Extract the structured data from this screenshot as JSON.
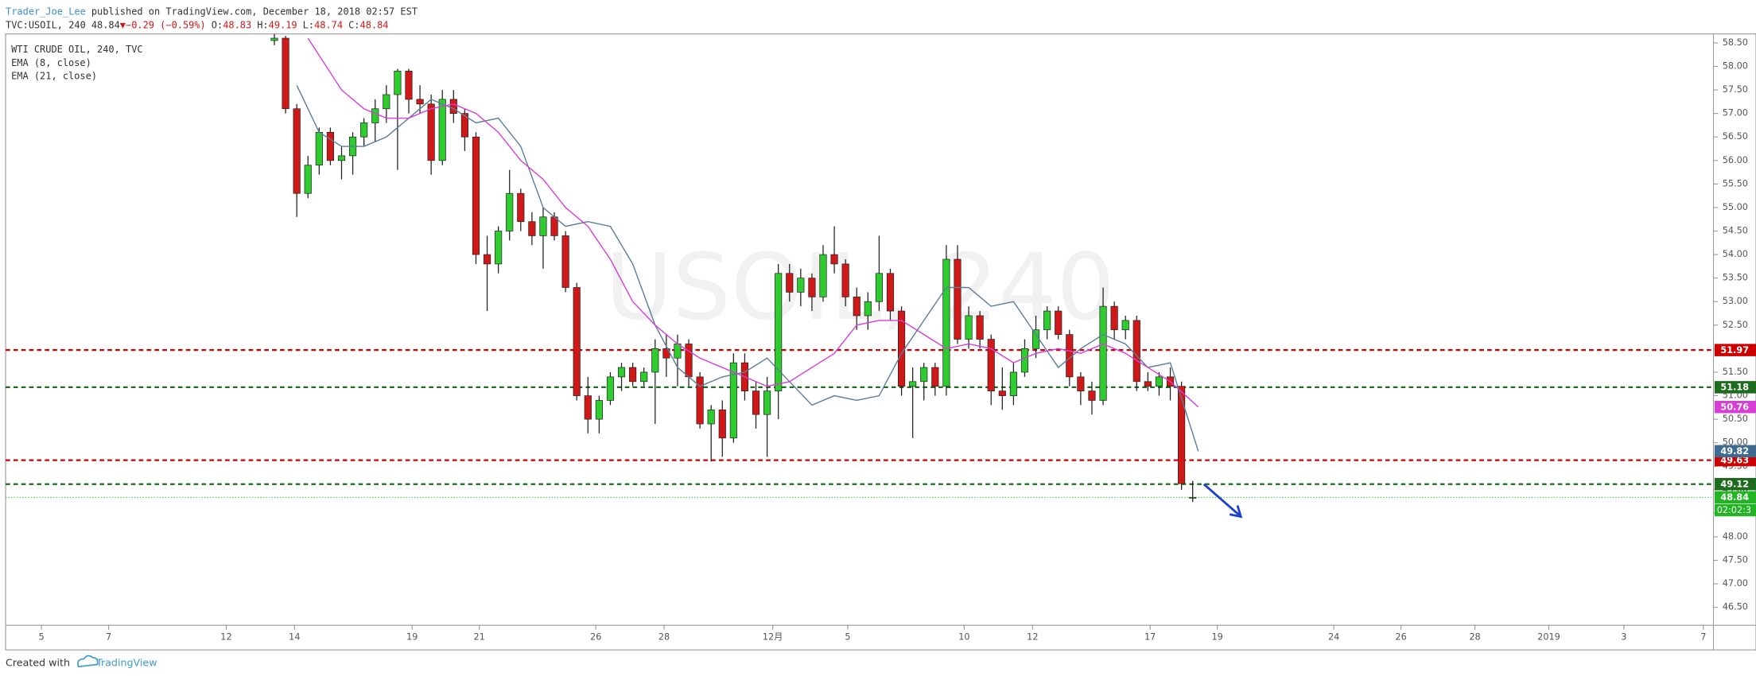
{
  "header": {
    "author": "Trader_Joe_Lee",
    "published": "published on TradingView.com, December 18, 2018 02:57 EST",
    "symbol": "TVC:USOIL, 240",
    "last": "48.84",
    "change": "▼−0.29 (−0.59%)",
    "ohlc": [
      {
        "label": "O:",
        "value": "48.83"
      },
      {
        "label": "H:",
        "value": "49.19"
      },
      {
        "label": "L:",
        "value": "48.74"
      },
      {
        "label": "C:",
        "value": "48.84"
      }
    ]
  },
  "footer": {
    "created": "Created with",
    "brand": "TradingView"
  },
  "chart_data": {
    "type": "candlestick",
    "title": "WTI CRUDE OIL, 240, TVC",
    "watermark": "USOIL, 240",
    "up_color": "#2ecc2e",
    "down_color": "#d01818",
    "wick_color": "#222222",
    "x": [
      48,
      50,
      52,
      54,
      56,
      58,
      60,
      62,
      64,
      66,
      68,
      70,
      72,
      74,
      76,
      78,
      80,
      82,
      84,
      86,
      88,
      90,
      92,
      94,
      96,
      98,
      100,
      102,
      104,
      106,
      108,
      110,
      112,
      114,
      116,
      118,
      120,
      122,
      124,
      126,
      128,
      130,
      132,
      134,
      136,
      138,
      140,
      142,
      144,
      146,
      148,
      150,
      152,
      154,
      156,
      158,
      160,
      162,
      164,
      166,
      168,
      170,
      172,
      174,
      176,
      178,
      180,
      182,
      184,
      186,
      188,
      190,
      192,
      194,
      196,
      198,
      200,
      202,
      204,
      206,
      208,
      210,
      212
    ],
    "open": [
      58.55,
      58.6,
      57.1,
      55.3,
      55.9,
      56.6,
      56.0,
      56.1,
      56.5,
      56.8,
      57.1,
      57.4,
      57.9,
      57.3,
      57.2,
      56.0,
      57.3,
      57.0,
      56.5,
      54.0,
      53.8,
      54.5,
      55.3,
      54.7,
      54.4,
      54.8,
      54.4,
      53.3,
      51.0,
      50.5,
      50.9,
      51.4,
      51.6,
      51.3,
      51.5,
      52.0,
      51.8,
      52.1,
      51.4,
      50.4,
      50.7,
      50.1,
      51.7,
      51.1,
      50.6,
      51.1,
      53.6,
      53.2,
      53.5,
      53.1,
      54.0,
      53.8,
      53.1,
      52.7,
      53.0,
      53.6,
      52.8,
      51.2,
      51.3,
      51.6,
      51.2,
      53.9,
      52.2,
      52.7,
      52.2,
      51.1,
      51.0,
      51.5,
      52.0,
      52.4,
      52.8,
      52.3,
      51.4,
      51.1,
      50.9,
      52.9,
      52.4,
      52.6,
      51.3,
      51.2,
      51.4,
      51.2,
      48.83
    ],
    "high": [
      58.69,
      58.65,
      57.2,
      56.1,
      56.7,
      56.7,
      56.3,
      56.6,
      56.9,
      57.3,
      57.6,
      57.95,
      57.95,
      57.6,
      57.4,
      57.5,
      57.5,
      57.1,
      56.6,
      54.4,
      54.6,
      55.8,
      55.4,
      54.9,
      55.0,
      54.9,
      54.5,
      53.4,
      51.4,
      51.0,
      51.5,
      51.7,
      51.7,
      51.6,
      52.2,
      52.3,
      52.3,
      52.2,
      51.5,
      50.8,
      50.9,
      51.9,
      51.9,
      51.3,
      51.4,
      53.8,
      53.8,
      53.7,
      53.6,
      54.2,
      54.6,
      53.9,
      53.3,
      53.2,
      54.4,
      53.7,
      52.9,
      51.6,
      51.7,
      51.7,
      54.2,
      54.2,
      52.9,
      52.8,
      52.3,
      51.6,
      51.7,
      52.2,
      52.7,
      52.9,
      52.9,
      52.4,
      51.5,
      51.3,
      53.3,
      53.0,
      52.7,
      52.7,
      51.5,
      51.5,
      51.6,
      51.3,
      49.19
    ],
    "low": [
      58.45,
      57.0,
      54.8,
      55.2,
      55.7,
      55.9,
      55.6,
      55.7,
      56.3,
      56.4,
      56.8,
      55.8,
      57.0,
      57.0,
      55.7,
      55.9,
      56.8,
      56.2,
      53.8,
      52.8,
      53.6,
      54.3,
      54.5,
      54.2,
      53.7,
      54.3,
      53.2,
      50.9,
      50.2,
      50.2,
      50.8,
      51.1,
      51.2,
      51.2,
      50.4,
      51.4,
      51.2,
      51.2,
      50.3,
      49.6,
      49.7,
      50.0,
      50.9,
      50.3,
      49.7,
      50.5,
      53.0,
      52.9,
      52.8,
      53.0,
      53.6,
      52.9,
      52.4,
      52.4,
      52.8,
      52.6,
      51.0,
      50.1,
      50.9,
      51.0,
      51.0,
      52.1,
      52.0,
      52.0,
      50.8,
      50.7,
      50.8,
      51.4,
      51.8,
      52.2,
      52.2,
      51.2,
      50.8,
      50.6,
      50.8,
      52.2,
      52.2,
      51.1,
      51.1,
      51.0,
      50.9,
      49.0,
      48.74
    ],
    "close": [
      58.6,
      57.1,
      55.3,
      55.9,
      56.6,
      56.0,
      56.1,
      56.5,
      56.8,
      57.1,
      57.4,
      57.9,
      57.3,
      57.2,
      56.0,
      57.3,
      57.0,
      56.5,
      54.0,
      53.8,
      54.5,
      55.3,
      54.7,
      54.4,
      54.8,
      54.4,
      53.3,
      51.0,
      50.5,
      50.9,
      51.4,
      51.6,
      51.3,
      51.5,
      52.0,
      51.8,
      52.1,
      51.4,
      50.4,
      50.7,
      50.1,
      51.7,
      51.1,
      50.6,
      51.1,
      53.6,
      53.2,
      53.5,
      53.1,
      54.0,
      53.8,
      53.1,
      52.7,
      53.0,
      53.6,
      52.8,
      51.2,
      51.3,
      51.6,
      51.2,
      53.9,
      52.2,
      52.7,
      52.2,
      51.1,
      51.0,
      51.5,
      52.0,
      52.4,
      52.8,
      52.3,
      51.4,
      51.1,
      50.9,
      52.9,
      52.4,
      52.6,
      51.3,
      51.2,
      51.4,
      51.2,
      49.13,
      48.84
    ],
    "lines": [
      {
        "name": "EMA (8, close)",
        "color": "#5a7d9a",
        "label_color": "#3f6b91",
        "x": [
          52,
          56,
          60,
          64,
          68,
          72,
          76,
          80,
          84,
          88,
          92,
          96,
          100,
          104,
          108,
          112,
          116,
          120,
          124,
          128,
          132,
          136,
          140,
          144,
          148,
          152,
          156,
          160,
          164,
          168,
          172,
          176,
          180,
          184,
          188,
          192,
          196,
          200,
          204,
          208,
          213
        ],
        "values": [
          57.6,
          56.6,
          56.3,
          56.3,
          56.5,
          56.9,
          57.3,
          57.1,
          56.8,
          56.9,
          56.3,
          55.0,
          54.6,
          54.7,
          54.6,
          53.8,
          52.5,
          51.6,
          51.2,
          51.4,
          51.5,
          51.8,
          51.3,
          50.8,
          51.0,
          50.9,
          51.0,
          51.9,
          52.6,
          53.3,
          53.3,
          52.9,
          53.0,
          52.3,
          51.6,
          52.0,
          52.3,
          52.1,
          51.6,
          51.7,
          49.82
        ]
      },
      {
        "name": "EMA (21, close)",
        "color": "#d63fd6",
        "label_color": "#d63fd6",
        "x": [
          54,
          60,
          64,
          68,
          72,
          76,
          80,
          84,
          88,
          92,
          96,
          100,
          104,
          108,
          112,
          116,
          120,
          124,
          128,
          132,
          136,
          140,
          144,
          148,
          152,
          156,
          160,
          164,
          168,
          172,
          176,
          180,
          184,
          188,
          192,
          196,
          200,
          204,
          208,
          213
        ],
        "values": [
          58.6,
          57.5,
          57.1,
          56.9,
          56.9,
          57.1,
          57.2,
          57.0,
          56.6,
          56.0,
          55.6,
          55.0,
          54.6,
          53.9,
          53.0,
          52.5,
          52.1,
          51.8,
          51.6,
          51.4,
          51.2,
          51.3,
          51.6,
          51.9,
          52.5,
          52.6,
          52.6,
          52.3,
          52.0,
          52.1,
          52.0,
          51.7,
          51.9,
          52.0,
          51.9,
          52.1,
          51.9,
          51.6,
          51.3,
          50.76
        ]
      }
    ],
    "hlines": [
      {
        "value": 51.97,
        "color": "#cc0000"
      },
      {
        "value": 51.18,
        "color": "#1d6b1d"
      },
      {
        "value": 49.63,
        "color": "#cc0000"
      },
      {
        "value": 49.12,
        "color": "#1d6b1d"
      }
    ],
    "last_price_color": "#22b422",
    "countdown": "02:02:3",
    "xlim": [
      0,
      305
    ],
    "xticks": [
      {
        "value": 6.4,
        "label": "5"
      },
      {
        "value": 18.4,
        "label": "7"
      },
      {
        "value": 39.4,
        "label": "12"
      },
      {
        "value": 51.6,
        "label": "14"
      },
      {
        "value": 72.6,
        "label": "19"
      },
      {
        "value": 84.6,
        "label": "21"
      },
      {
        "value": 105.4,
        "label": "26"
      },
      {
        "value": 117.6,
        "label": "28"
      },
      {
        "value": 137,
        "label": "12月"
      },
      {
        "value": 150.4,
        "label": "5"
      },
      {
        "value": 171.2,
        "label": "10"
      },
      {
        "value": 183.4,
        "label": "12"
      },
      {
        "value": 204.4,
        "label": "17"
      },
      {
        "value": 216.4,
        "label": "19"
      },
      {
        "value": 237.2,
        "label": "24"
      },
      {
        "value": 249.2,
        "label": "26"
      },
      {
        "value": 262.4,
        "label": "28"
      },
      {
        "value": 275.6,
        "label": "2019"
      },
      {
        "value": 289,
        "label": "3"
      },
      {
        "value": 303.2,
        "label": "7"
      }
    ],
    "ylim": [
      46.12,
      58.69
    ],
    "yticks": [
      {
        "value": 46.5,
        "label": "46.50"
      },
      {
        "value": 47,
        "label": "47.00"
      },
      {
        "value": 47.5,
        "label": "47.50"
      },
      {
        "value": 48,
        "label": "48.00"
      },
      {
        "value": 48.5,
        "label": "48.50"
      },
      {
        "value": 49,
        "label": "49.00"
      },
      {
        "value": 49.5,
        "label": "49.50"
      },
      {
        "value": 50,
        "label": "50.00"
      },
      {
        "value": 50.5,
        "label": "50.50"
      },
      {
        "value": 51,
        "label": "51.00"
      },
      {
        "value": 51.5,
        "label": "51.50"
      },
      {
        "value": 52,
        "label": "52.00"
      },
      {
        "value": 52.5,
        "label": "52.50"
      },
      {
        "value": 53,
        "label": "53.00"
      },
      {
        "value": 53.5,
        "label": "53.50"
      },
      {
        "value": 54,
        "label": "54.00"
      },
      {
        "value": 54.5,
        "label": "54.50"
      },
      {
        "value": 55,
        "label": "55.00"
      },
      {
        "value": 55.5,
        "label": "55.50"
      },
      {
        "value": 56,
        "label": "56.00"
      },
      {
        "value": 56.5,
        "label": "56.50"
      },
      {
        "value": 57,
        "label": "57.00"
      },
      {
        "value": 57.5,
        "label": "57.50"
      },
      {
        "value": 58,
        "label": "58.00"
      },
      {
        "value": 58.5,
        "label": "58.50"
      }
    ]
  }
}
